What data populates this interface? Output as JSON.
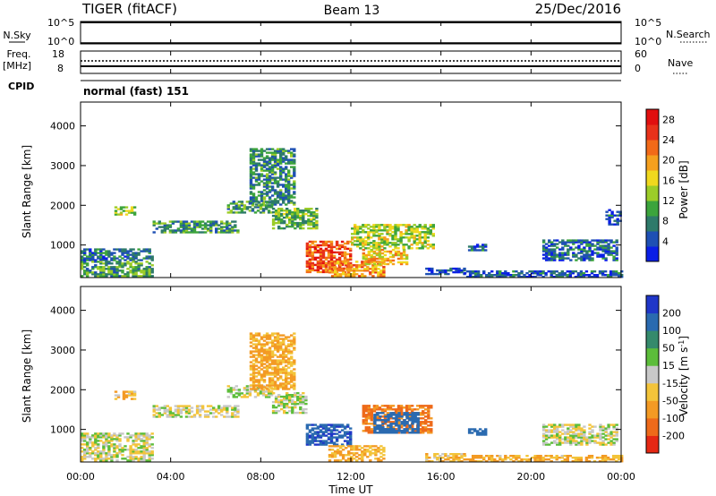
{
  "header": {
    "station": "TIGER (fitACF)",
    "beam": "Beam 13",
    "date": "25/Dec/2016"
  },
  "strip_nsky": {
    "label": "N.Sky",
    "right_label": "N.Search",
    "ticks_left": [
      "10^5",
      "10^0"
    ],
    "ticks_right": [
      "10^5",
      "10^0"
    ]
  },
  "strip_freq": {
    "label_line1": "Freq.",
    "label_line2": "[MHz]",
    "right_label": "Nave",
    "ticks_left": [
      "18",
      "8"
    ],
    "ticks_right": [
      "60",
      "0"
    ]
  },
  "cpid": {
    "label": "CPID",
    "value": "normal (fast) 151"
  },
  "x_axis": {
    "title": "Time UT",
    "ticks": [
      "00:00",
      "04:00",
      "08:00",
      "12:00",
      "16:00",
      "20:00",
      "00:00"
    ],
    "range_hours": [
      0,
      24
    ]
  },
  "chart_data": [
    {
      "type": "heatmap",
      "title": "Power",
      "ylabel": "Slant Range [km]",
      "y_ticks": [
        "1000",
        "2000",
        "3000",
        "4000"
      ],
      "ylim": [
        180,
        4600
      ],
      "colorbar": {
        "label": "Power [dB]",
        "ticks": [
          "4",
          "8",
          "12",
          "16",
          "20",
          "24",
          "28"
        ],
        "range": [
          0,
          30
        ],
        "colors": [
          "#0a1ee6",
          "#1e50b4",
          "#2e7a6a",
          "#3ca43c",
          "#9ccc28",
          "#f0d81e",
          "#f5a01e",
          "#f26a18",
          "#e8321a",
          "#e10f0f"
        ]
      },
      "regions": [
        {
          "t0": 0.0,
          "t1": 3.2,
          "r0": 600,
          "r1": 900,
          "level": 6
        },
        {
          "t0": 0.0,
          "t1": 3.2,
          "r0": 200,
          "r1": 600,
          "level": 10
        },
        {
          "t0": 1.5,
          "t1": 2.4,
          "r0": 1750,
          "r1": 1950,
          "level": 14
        },
        {
          "t0": 3.2,
          "t1": 7.0,
          "r0": 1300,
          "r1": 1600,
          "level": 9
        },
        {
          "t0": 6.5,
          "t1": 8.5,
          "r0": 1800,
          "r1": 2100,
          "level": 10
        },
        {
          "t0": 7.5,
          "t1": 9.5,
          "r0": 2000,
          "r1": 3400,
          "level": 8
        },
        {
          "t0": 8.5,
          "t1": 10.5,
          "r0": 1400,
          "r1": 1900,
          "level": 11
        },
        {
          "t0": 10.0,
          "t1": 12.0,
          "r0": 300,
          "r1": 1100,
          "level": 24
        },
        {
          "t0": 11.0,
          "t1": 13.5,
          "r0": 200,
          "r1": 600,
          "level": 20
        },
        {
          "t0": 12.0,
          "t1": 15.6,
          "r0": 900,
          "r1": 1500,
          "level": 14
        },
        {
          "t0": 12.5,
          "t1": 14.5,
          "r0": 500,
          "r1": 900,
          "level": 18
        },
        {
          "t0": 15.3,
          "t1": 17.0,
          "r0": 250,
          "r1": 400,
          "level": 4
        },
        {
          "t0": 17.0,
          "t1": 24.0,
          "r0": 180,
          "r1": 350,
          "level": 5
        },
        {
          "t0": 17.2,
          "t1": 18.0,
          "r0": 850,
          "r1": 1000,
          "level": 5
        },
        {
          "t0": 20.5,
          "t1": 23.8,
          "r0": 600,
          "r1": 1100,
          "level": 6
        },
        {
          "t0": 23.3,
          "t1": 24.0,
          "r0": 1500,
          "r1": 1900,
          "level": 5
        }
      ]
    },
    {
      "type": "heatmap",
      "title": "Velocity",
      "ylabel": "Slant Range [km]",
      "y_ticks": [
        "1000",
        "2000",
        "3000",
        "4000"
      ],
      "ylim": [
        180,
        4600
      ],
      "colorbar": {
        "label": "Velocity [m s^-1]",
        "ticks": [
          "200",
          "100",
          "50",
          "15",
          "-15",
          "-50",
          "-100",
          "-200"
        ],
        "colors": [
          "#1f36c8",
          "#2a6ab0",
          "#358a6c",
          "#5cbd3a",
          "#c8c8c8",
          "#f3c43a",
          "#f39a24",
          "#ee6a1a",
          "#e52814"
        ]
      },
      "regions": [
        {
          "t0": 0.0,
          "t1": 3.2,
          "r0": 200,
          "r1": 900,
          "level": -5
        },
        {
          "t0": 1.5,
          "t1": 2.4,
          "r0": 1750,
          "r1": 1950,
          "level": -40
        },
        {
          "t0": 3.2,
          "t1": 7.0,
          "r0": 1300,
          "r1": 1600,
          "level": -5
        },
        {
          "t0": 6.5,
          "t1": 8.5,
          "r0": 1800,
          "r1": 2100,
          "level": 0
        },
        {
          "t0": 7.5,
          "t1": 9.5,
          "r0": 2000,
          "r1": 3400,
          "level": -60
        },
        {
          "t0": 8.5,
          "t1": 10.0,
          "r0": 1400,
          "r1": 1900,
          "level": 5
        },
        {
          "t0": 10.0,
          "t1": 12.0,
          "r0": 600,
          "r1": 1100,
          "level": 180
        },
        {
          "t0": 11.0,
          "t1": 13.5,
          "r0": 200,
          "r1": 600,
          "level": -60
        },
        {
          "t0": 12.5,
          "t1": 15.6,
          "r0": 900,
          "r1": 1600,
          "level": -120
        },
        {
          "t0": 13.0,
          "t1": 15.0,
          "r0": 900,
          "r1": 1400,
          "level": 150
        },
        {
          "t0": 15.3,
          "t1": 17.0,
          "r0": 180,
          "r1": 400,
          "level": -40
        },
        {
          "t0": 17.2,
          "t1": 18.0,
          "r0": 850,
          "r1": 1000,
          "level": 150
        },
        {
          "t0": 17.0,
          "t1": 24.0,
          "r0": 180,
          "r1": 350,
          "level": -50
        },
        {
          "t0": 20.5,
          "t1": 23.8,
          "r0": 600,
          "r1": 1100,
          "level": 0
        }
      ]
    }
  ]
}
